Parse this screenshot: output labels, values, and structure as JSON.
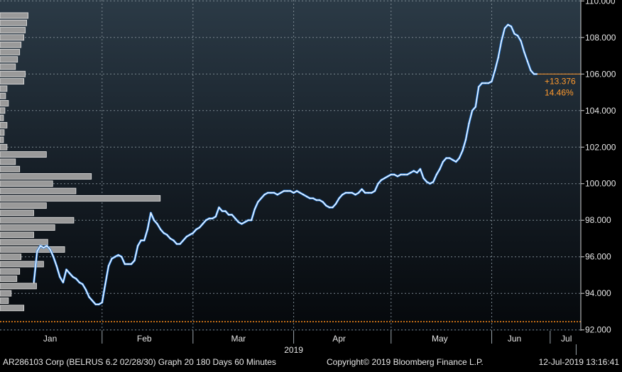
{
  "footer": {
    "left": "AR286103 Corp (BELRUS 6.2 02/28/30) Graph 20 180 Days 60 Minutes",
    "center": "Copyright© 2019 Bloomberg Finance L.P.",
    "right": "12-Jul-2019 13:16:41"
  },
  "chart_data": {
    "type": "line",
    "title": "",
    "xlabel": "",
    "ylabel": "",
    "year_label": "2019",
    "x_tick_labels": [
      "Jan",
      "Feb",
      "Mar",
      "Apr",
      "May",
      "Jun",
      "Jul"
    ],
    "y_tick_labels": [
      "92.000",
      "94.000",
      "96.000",
      "98.000",
      "100.000",
      "102.000",
      "104.000",
      "106.000",
      "108.000",
      "110.000"
    ],
    "ylim": [
      91.95,
      110.05
    ],
    "grid": true,
    "reference_line": {
      "value": 92.45,
      "color": "#ff8c1a"
    },
    "change_annotation": {
      "absolute": "+13.376",
      "percent": "14.46%",
      "color": "#ff9a2e"
    },
    "series": [
      {
        "color": "#ffffff",
        "highlight_color": "#2f86e6",
        "points": [
          [
            "2019-01-11",
            94.6
          ],
          [
            "2019-01-12",
            96.3
          ],
          [
            "2019-01-13",
            96.6
          ],
          [
            "2019-01-14",
            96.5
          ],
          [
            "2019-01-15",
            96.6
          ],
          [
            "2019-01-16",
            96.4
          ],
          [
            "2019-01-17",
            96.0
          ],
          [
            "2019-01-18",
            95.5
          ],
          [
            "2019-01-19",
            94.9
          ],
          [
            "2019-01-20",
            94.6
          ],
          [
            "2019-01-21",
            95.3
          ],
          [
            "2019-01-22",
            95.1
          ],
          [
            "2019-01-23",
            94.9
          ],
          [
            "2019-01-24",
            94.8
          ],
          [
            "2019-01-25",
            94.6
          ],
          [
            "2019-01-26",
            94.5
          ],
          [
            "2019-01-27",
            94.2
          ],
          [
            "2019-01-28",
            93.8
          ],
          [
            "2019-01-29",
            93.6
          ],
          [
            "2019-01-30",
            93.4
          ],
          [
            "2019-01-31",
            93.4
          ],
          [
            "2019-02-01",
            93.5
          ],
          [
            "2019-02-02",
            94.5
          ],
          [
            "2019-02-03",
            95.5
          ],
          [
            "2019-02-04",
            95.9
          ],
          [
            "2019-02-05",
            96.0
          ],
          [
            "2019-02-06",
            96.1
          ],
          [
            "2019-02-07",
            96.0
          ],
          [
            "2019-02-08",
            95.6
          ],
          [
            "2019-02-09",
            95.6
          ],
          [
            "2019-02-10",
            95.6
          ],
          [
            "2019-02-11",
            95.8
          ],
          [
            "2019-02-12",
            96.6
          ],
          [
            "2019-02-13",
            96.9
          ],
          [
            "2019-02-14",
            96.9
          ],
          [
            "2019-02-15",
            97.5
          ],
          [
            "2019-02-16",
            98.4
          ],
          [
            "2019-02-17",
            98.0
          ],
          [
            "2019-02-18",
            97.8
          ],
          [
            "2019-02-19",
            97.5
          ],
          [
            "2019-02-20",
            97.3
          ],
          [
            "2019-02-21",
            97.2
          ],
          [
            "2019-02-22",
            97.0
          ],
          [
            "2019-02-23",
            96.9
          ],
          [
            "2019-02-24",
            96.7
          ],
          [
            "2019-02-25",
            96.7
          ],
          [
            "2019-02-26",
            96.9
          ],
          [
            "2019-02-27",
            97.1
          ],
          [
            "2019-02-28",
            97.2
          ],
          [
            "2019-03-01",
            97.3
          ],
          [
            "2019-03-02",
            97.5
          ],
          [
            "2019-03-03",
            97.6
          ],
          [
            "2019-03-04",
            97.8
          ],
          [
            "2019-03-05",
            98.0
          ],
          [
            "2019-03-06",
            98.1
          ],
          [
            "2019-03-07",
            98.1
          ],
          [
            "2019-03-08",
            98.2
          ],
          [
            "2019-03-09",
            98.7
          ],
          [
            "2019-03-10",
            98.5
          ],
          [
            "2019-03-11",
            98.5
          ],
          [
            "2019-03-12",
            98.3
          ],
          [
            "2019-03-13",
            98.3
          ],
          [
            "2019-03-14",
            98.1
          ],
          [
            "2019-03-15",
            97.9
          ],
          [
            "2019-03-16",
            97.8
          ],
          [
            "2019-03-17",
            97.9
          ],
          [
            "2019-03-18",
            98.0
          ],
          [
            "2019-03-19",
            98.0
          ],
          [
            "2019-03-20",
            98.6
          ],
          [
            "2019-03-21",
            99.0
          ],
          [
            "2019-03-22",
            99.2
          ],
          [
            "2019-03-23",
            99.4
          ],
          [
            "2019-03-24",
            99.5
          ],
          [
            "2019-03-25",
            99.5
          ],
          [
            "2019-03-26",
            99.5
          ],
          [
            "2019-03-27",
            99.4
          ],
          [
            "2019-03-28",
            99.5
          ],
          [
            "2019-03-29",
            99.6
          ],
          [
            "2019-03-30",
            99.6
          ],
          [
            "2019-03-31",
            99.6
          ],
          [
            "2019-04-01",
            99.5
          ],
          [
            "2019-04-02",
            99.6
          ],
          [
            "2019-04-03",
            99.5
          ],
          [
            "2019-04-04",
            99.4
          ],
          [
            "2019-04-05",
            99.3
          ],
          [
            "2019-04-06",
            99.2
          ],
          [
            "2019-04-07",
            99.2
          ],
          [
            "2019-04-08",
            99.1
          ],
          [
            "2019-04-09",
            99.1
          ],
          [
            "2019-04-10",
            99.0
          ],
          [
            "2019-04-11",
            98.8
          ],
          [
            "2019-04-12",
            98.7
          ],
          [
            "2019-04-13",
            98.7
          ],
          [
            "2019-04-14",
            98.9
          ],
          [
            "2019-04-15",
            99.2
          ],
          [
            "2019-04-16",
            99.4
          ],
          [
            "2019-04-17",
            99.5
          ],
          [
            "2019-04-18",
            99.5
          ],
          [
            "2019-04-19",
            99.5
          ],
          [
            "2019-04-20",
            99.4
          ],
          [
            "2019-04-21",
            99.5
          ],
          [
            "2019-04-22",
            99.7
          ],
          [
            "2019-04-23",
            99.5
          ],
          [
            "2019-04-24",
            99.5
          ],
          [
            "2019-04-25",
            99.5
          ],
          [
            "2019-04-26",
            99.6
          ],
          [
            "2019-04-27",
            100.0
          ],
          [
            "2019-04-28",
            100.2
          ],
          [
            "2019-04-29",
            100.3
          ],
          [
            "2019-04-30",
            100.4
          ],
          [
            "2019-05-01",
            100.5
          ],
          [
            "2019-05-02",
            100.5
          ],
          [
            "2019-05-03",
            100.4
          ],
          [
            "2019-05-04",
            100.5
          ],
          [
            "2019-05-05",
            100.5
          ],
          [
            "2019-05-06",
            100.5
          ],
          [
            "2019-05-07",
            100.6
          ],
          [
            "2019-05-08",
            100.7
          ],
          [
            "2019-05-09",
            100.6
          ],
          [
            "2019-05-10",
            100.8
          ],
          [
            "2019-05-11",
            100.3
          ],
          [
            "2019-05-12",
            100.1
          ],
          [
            "2019-05-13",
            100.0
          ],
          [
            "2019-05-14",
            100.1
          ],
          [
            "2019-05-15",
            100.5
          ],
          [
            "2019-05-16",
            100.8
          ],
          [
            "2019-05-17",
            101.2
          ],
          [
            "2019-05-18",
            101.4
          ],
          [
            "2019-05-19",
            101.4
          ],
          [
            "2019-05-20",
            101.3
          ],
          [
            "2019-05-21",
            101.2
          ],
          [
            "2019-05-22",
            101.4
          ],
          [
            "2019-05-23",
            101.8
          ],
          [
            "2019-05-24",
            102.4
          ],
          [
            "2019-05-25",
            103.3
          ],
          [
            "2019-05-26",
            104.0
          ],
          [
            "2019-05-27",
            104.2
          ],
          [
            "2019-05-28",
            105.3
          ],
          [
            "2019-05-29",
            105.5
          ],
          [
            "2019-05-30",
            105.5
          ],
          [
            "2019-05-31",
            105.5
          ],
          [
            "2019-06-01",
            105.6
          ],
          [
            "2019-06-02",
            106.2
          ],
          [
            "2019-06-03",
            106.9
          ],
          [
            "2019-06-04",
            107.8
          ],
          [
            "2019-06-05",
            108.5
          ],
          [
            "2019-06-06",
            108.7
          ],
          [
            "2019-06-07",
            108.6
          ],
          [
            "2019-06-08",
            108.2
          ],
          [
            "2019-06-09",
            108.1
          ],
          [
            "2019-06-10",
            107.8
          ],
          [
            "2019-06-11",
            107.2
          ],
          [
            "2019-06-12",
            106.7
          ],
          [
            "2019-06-13",
            106.2
          ],
          [
            "2019-06-14",
            106.0
          ],
          [
            "2019-06-15",
            106.0
          ]
        ]
      }
    ],
    "volume_histogram": [
      [
        109.2,
        0.4
      ],
      [
        108.8,
        0.38
      ],
      [
        108.4,
        0.36
      ],
      [
        108.0,
        0.34
      ],
      [
        107.6,
        0.3
      ],
      [
        107.2,
        0.28
      ],
      [
        106.8,
        0.25
      ],
      [
        106.4,
        0.22
      ],
      [
        106.0,
        0.36
      ],
      [
        105.6,
        0.34
      ],
      [
        105.2,
        0.1
      ],
      [
        104.8,
        0.08
      ],
      [
        104.4,
        0.12
      ],
      [
        104.0,
        0.07
      ],
      [
        103.6,
        0.05
      ],
      [
        103.2,
        0.1
      ],
      [
        102.8,
        0.06
      ],
      [
        102.4,
        0.05
      ],
      [
        102.0,
        0.1
      ],
      [
        101.6,
        0.66
      ],
      [
        101.2,
        0.22
      ],
      [
        100.8,
        0.28
      ],
      [
        100.4,
        1.3
      ],
      [
        100.0,
        0.75
      ],
      [
        99.6,
        1.08
      ],
      [
        99.2,
        2.28
      ],
      [
        98.8,
        0.66
      ],
      [
        98.4,
        0.48
      ],
      [
        98.0,
        1.05
      ],
      [
        97.6,
        0.78
      ],
      [
        97.2,
        0.48
      ],
      [
        96.8,
        0.68
      ],
      [
        96.4,
        0.92
      ],
      [
        96.0,
        0.3
      ],
      [
        95.6,
        0.62
      ],
      [
        95.2,
        0.28
      ],
      [
        94.8,
        0.24
      ],
      [
        94.4,
        0.52
      ],
      [
        94.0,
        0.16
      ],
      [
        93.6,
        0.12
      ],
      [
        93.2,
        0.34
      ]
    ]
  }
}
